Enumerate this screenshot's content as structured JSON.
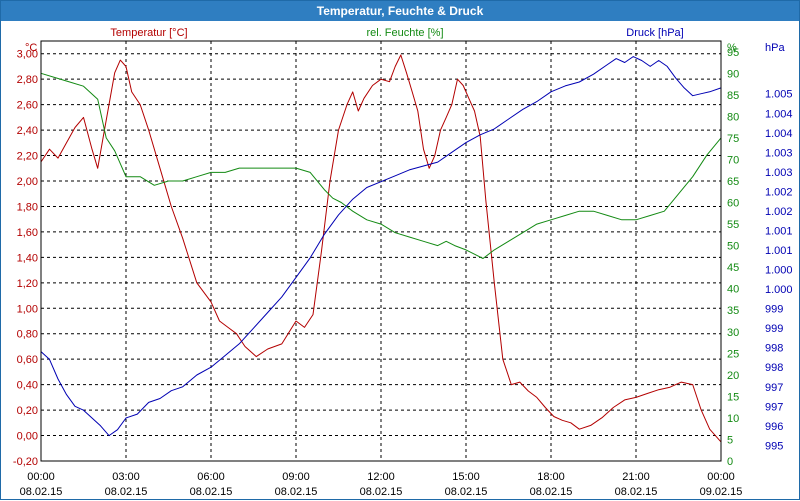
{
  "window": {
    "title": "Temperatur, Feuchte & Druck"
  },
  "chart_data": {
    "type": "line",
    "title": "Temperatur, Feuchte & Druck",
    "colors": {
      "temperature": "#b30000",
      "humidity": "#138a13",
      "pressure": "#0000b3",
      "grid": "#000000",
      "frame": "#000000"
    },
    "x_ticks": [
      {
        "time": "00:00",
        "date": "08.02.15"
      },
      {
        "time": "03:00",
        "date": "08.02.15"
      },
      {
        "time": "06:00",
        "date": "08.02.15"
      },
      {
        "time": "09:00",
        "date": "08.02.15"
      },
      {
        "time": "12:00",
        "date": "08.02.15"
      },
      {
        "time": "15:00",
        "date": "08.02.15"
      },
      {
        "time": "18:00",
        "date": "08.02.15"
      },
      {
        "time": "21:00",
        "date": "08.02.15"
      },
      {
        "time": "00:00",
        "date": "09.02.15"
      }
    ],
    "x_range_hours": [
      0,
      24
    ],
    "axes": {
      "temperature": {
        "unit": "°C",
        "legend": "Temperatur [°C]",
        "ylim": [
          -0.2,
          3.1
        ],
        "ticks": [
          "-0,20",
          "0,00",
          "0,20",
          "0,40",
          "0,60",
          "0,80",
          "1,00",
          "1,20",
          "1,40",
          "1,60",
          "1,80",
          "2,00",
          "2,20",
          "2,40",
          "2,60",
          "2,80",
          "3,00"
        ]
      },
      "humidity": {
        "unit": "%",
        "legend": "rel. Feuchte [%]",
        "ylim": [
          0,
          97.5
        ],
        "ticks": [
          "0",
          "5",
          "10",
          "15",
          "20",
          "25",
          "30",
          "35",
          "40",
          "45",
          "50",
          "55",
          "60",
          "65",
          "70",
          "75",
          "80",
          "85",
          "90",
          "95"
        ]
      },
      "pressure": {
        "unit": "hPa",
        "legend": "Druck [hPa]",
        "ylim": [
          994.6,
          1005.35
        ],
        "ticks": [
          "995",
          "996",
          "997",
          "997",
          "998",
          "998",
          "999",
          "999",
          "1.000",
          "1.000",
          "1.001",
          "1.001",
          "1.002",
          "1.002",
          "1.003",
          "1.003",
          "1.004",
          "1.004",
          "1.005"
        ]
      }
    },
    "series": [
      {
        "name": "Temperatur [°C]",
        "axis": "temperature",
        "color": "#b30000",
        "x": [
          0,
          0.3,
          0.6,
          0.9,
          1.2,
          1.5,
          1.8,
          2.0,
          2.2,
          2.4,
          2.6,
          2.8,
          3.0,
          3.2,
          3.5,
          3.8,
          4.2,
          4.6,
          5.0,
          5.5,
          6.0,
          6.3,
          6.6,
          6.9,
          7.2,
          7.6,
          8.0,
          8.5,
          9.0,
          9.3,
          9.6,
          9.9,
          10.2,
          10.5,
          10.8,
          11.0,
          11.2,
          11.4,
          11.7,
          12.0,
          12.3,
          12.5,
          12.7,
          12.9,
          13.1,
          13.3,
          13.5,
          13.7,
          13.9,
          14.1,
          14.3,
          14.5,
          14.7,
          14.9,
          15.1,
          15.3,
          15.5,
          15.7,
          16.0,
          16.3,
          16.6,
          16.9,
          17.2,
          17.5,
          17.8,
          18.1,
          18.4,
          18.7,
          19.0,
          19.4,
          19.8,
          20.2,
          20.6,
          21.0,
          21.4,
          21.8,
          22.2,
          22.6,
          23.0,
          23.3,
          23.6,
          24.0
        ],
        "y": [
          2.15,
          2.25,
          2.18,
          2.3,
          2.42,
          2.5,
          2.25,
          2.1,
          2.35,
          2.6,
          2.85,
          2.95,
          2.9,
          2.7,
          2.6,
          2.4,
          2.1,
          1.8,
          1.55,
          1.2,
          1.05,
          0.9,
          0.85,
          0.8,
          0.7,
          0.62,
          0.68,
          0.72,
          0.9,
          0.85,
          0.95,
          1.45,
          2.0,
          2.4,
          2.6,
          2.7,
          2.55,
          2.65,
          2.75,
          2.8,
          2.78,
          2.9,
          2.99,
          2.85,
          2.7,
          2.55,
          2.25,
          2.1,
          2.2,
          2.4,
          2.5,
          2.6,
          2.8,
          2.75,
          2.65,
          2.55,
          2.35,
          1.85,
          1.2,
          0.6,
          0.4,
          0.42,
          0.35,
          0.3,
          0.22,
          0.15,
          0.12,
          0.1,
          0.05,
          0.08,
          0.14,
          0.22,
          0.28,
          0.3,
          0.33,
          0.36,
          0.38,
          0.42,
          0.4,
          0.2,
          0.05,
          -0.05
        ]
      },
      {
        "name": "rel. Feuchte [%]",
        "axis": "humidity",
        "color": "#138a13",
        "x": [
          0,
          0.5,
          1.0,
          1.5,
          2.0,
          2.3,
          2.6,
          3.0,
          3.5,
          4.0,
          4.5,
          5.0,
          5.5,
          6.0,
          6.5,
          7.0,
          7.5,
          8.0,
          8.5,
          9.0,
          9.5,
          10.0,
          10.3,
          10.6,
          11.0,
          11.5,
          12.0,
          12.5,
          13.0,
          13.5,
          14.0,
          14.3,
          14.6,
          15.0,
          15.3,
          15.6,
          16.0,
          16.5,
          17.0,
          17.5,
          18.0,
          18.5,
          19.0,
          19.5,
          20.0,
          20.5,
          21.0,
          21.5,
          22.0,
          22.5,
          23.0,
          23.5,
          24.0
        ],
        "y": [
          90,
          89,
          88,
          87,
          84,
          75,
          72,
          66,
          66,
          64,
          65,
          65,
          66,
          67,
          67,
          68,
          68,
          68,
          68,
          68,
          67,
          63,
          61,
          60,
          58,
          56,
          55,
          53,
          52,
          51,
          50,
          51,
          50,
          49,
          48,
          47,
          49,
          51,
          53,
          55,
          56,
          57,
          58,
          58,
          57,
          56,
          56,
          57,
          58,
          62,
          66,
          71,
          75
        ]
      },
      {
        "name": "Druck [hPa]",
        "axis": "pressure",
        "color": "#0000b3",
        "x": [
          0,
          0.3,
          0.6,
          0.9,
          1.2,
          1.5,
          1.8,
          2.1,
          2.4,
          2.7,
          3.0,
          3.4,
          3.8,
          4.2,
          4.6,
          5.0,
          5.5,
          6.0,
          6.5,
          7.0,
          7.5,
          8.0,
          8.5,
          9.0,
          9.5,
          10.0,
          10.5,
          11.0,
          11.5,
          12.0,
          12.5,
          13.0,
          13.5,
          14.0,
          14.5,
          15.0,
          15.5,
          16.0,
          16.5,
          17.0,
          17.5,
          18.0,
          18.5,
          19.0,
          19.5,
          20.0,
          20.3,
          20.6,
          20.9,
          21.2,
          21.5,
          21.8,
          22.1,
          22.4,
          22.7,
          23.0,
          23.3,
          23.6,
          24.0
        ],
        "y": [
          997.4,
          997.2,
          996.7,
          996.3,
          996.0,
          995.9,
          995.7,
          995.5,
          995.25,
          995.4,
          995.7,
          995.8,
          996.1,
          996.2,
          996.4,
          996.5,
          996.8,
          997.0,
          997.3,
          997.6,
          998.0,
          998.4,
          998.8,
          999.3,
          999.8,
          1000.4,
          1000.9,
          1001.3,
          1001.6,
          1001.75,
          1001.9,
          1002.05,
          1002.15,
          1002.25,
          1002.5,
          1002.75,
          1002.95,
          1003.1,
          1003.35,
          1003.6,
          1003.8,
          1004.05,
          1004.2,
          1004.3,
          1004.5,
          1004.75,
          1004.9,
          1004.8,
          1004.95,
          1004.85,
          1004.7,
          1004.85,
          1004.7,
          1004.4,
          1004.15,
          1003.95,
          1004.0,
          1004.05,
          1004.15
        ]
      }
    ]
  }
}
